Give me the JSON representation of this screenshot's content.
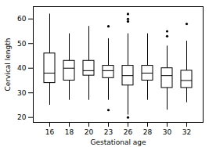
{
  "chart_data": {
    "type": "box",
    "xlabel": "Gestational age",
    "ylabel": "Cervical length",
    "categories": [
      "16",
      "18",
      "20",
      "23",
      "26",
      "28",
      "30",
      "32"
    ],
    "boxes": [
      {
        "q1": 34,
        "median": 38,
        "q3": 46,
        "whisker_low": 25,
        "whisker_high": 62,
        "fliers": []
      },
      {
        "q1": 35,
        "median": 40,
        "q3": 43,
        "whisker_low": 27,
        "whisker_high": 54,
        "fliers": []
      },
      {
        "q1": 37,
        "median": 39,
        "q3": 43,
        "whisker_low": 27,
        "whisker_high": 57,
        "fliers": []
      },
      {
        "q1": 36,
        "median": 39,
        "q3": 41,
        "whisker_low": 27,
        "whisker_high": 52,
        "fliers": [
          23,
          57
        ]
      },
      {
        "q1": 33,
        "median": 37,
        "q3": 41,
        "whisker_low": 21,
        "whisker_high": 54,
        "fliers": [
          20,
          59,
          62,
          60
        ]
      },
      {
        "q1": 35,
        "median": 38,
        "q3": 41,
        "whisker_low": 27,
        "whisker_high": 54,
        "fliers": []
      },
      {
        "q1": 32,
        "median": 37,
        "q3": 40,
        "whisker_low": 23,
        "whisker_high": 49,
        "fliers": [
          53,
          55
        ]
      },
      {
        "q1": 32,
        "median": 35,
        "q3": 39,
        "whisker_low": 26,
        "whisker_high": 51,
        "fliers": [
          58
        ]
      }
    ],
    "ylim": [
      18,
      65
    ],
    "yticks": [
      20,
      30,
      40,
      50,
      60
    ],
    "grid": false
  }
}
